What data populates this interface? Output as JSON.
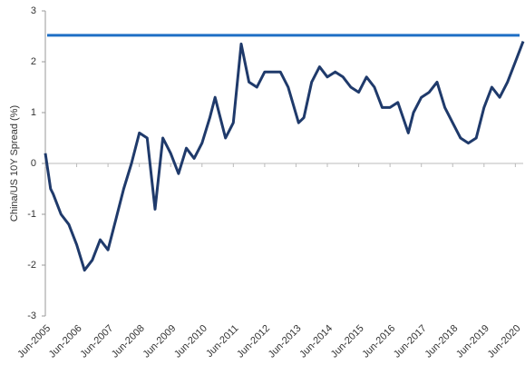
{
  "chart_data": {
    "type": "line",
    "y_label": "China/US 10Y Spread (%)",
    "x": [
      "Jun-2005",
      "Aug-2005",
      "Sep-2005",
      "Dec-2005",
      "Mar-2006",
      "Jun-2006",
      "Sep-2006",
      "Dec-2006",
      "Mar-2007",
      "Jun-2007",
      "Sep-2007",
      "Dec-2007",
      "Mar-2008",
      "Jun-2008",
      "Sep-2008",
      "Dec-2008",
      "Mar-2009",
      "Jun-2009",
      "Sep-2009",
      "Dec-2009",
      "Mar-2010",
      "Jun-2010",
      "Sep-2010",
      "Nov-2010",
      "Mar-2011",
      "Jun-2011",
      "Sep-2011",
      "Dec-2011",
      "Mar-2012",
      "Jun-2012",
      "Sep-2012",
      "Dec-2012",
      "Mar-2013",
      "Jul-2013",
      "Sep-2013",
      "Dec-2013",
      "Mar-2014",
      "Jun-2014",
      "Sep-2014",
      "Dec-2014",
      "Mar-2015",
      "Jun-2015",
      "Sep-2015",
      "Dec-2015",
      "Mar-2016",
      "Jun-2016",
      "Sep-2016",
      "Jan-2017",
      "Mar-2017",
      "Jun-2017",
      "Sep-2017",
      "Dec-2017",
      "Mar-2018",
      "Jun-2018",
      "Sep-2018",
      "Dec-2018",
      "Mar-2019",
      "Jun-2019",
      "Sep-2019",
      "Dec-2019",
      "Mar-2020",
      "Jun-2020",
      "Sep-2020"
    ],
    "series": [
      {
        "color": "#1f3a6b",
        "values": [
          0.2,
          -0.5,
          -0.6,
          -1.0,
          -1.2,
          -1.6,
          -2.1,
          -1.9,
          -1.5,
          -1.7,
          -1.1,
          -0.5,
          0.0,
          0.6,
          0.5,
          -0.9,
          0.5,
          0.2,
          -0.2,
          0.3,
          0.1,
          0.4,
          0.9,
          1.3,
          0.5,
          0.8,
          2.35,
          1.6,
          1.5,
          1.8,
          1.8,
          1.8,
          1.5,
          0.8,
          0.9,
          1.6,
          1.9,
          1.7,
          1.8,
          1.7,
          1.5,
          1.4,
          1.7,
          1.5,
          1.1,
          1.1,
          1.2,
          0.6,
          1.0,
          1.3,
          1.4,
          1.6,
          1.1,
          0.8,
          0.5,
          0.4,
          0.5,
          1.1,
          1.5,
          1.3,
          1.6,
          2.0,
          2.4
        ]
      }
    ],
    "reference_line": {
      "value": 2.52,
      "color": "#1f6fc5"
    },
    "xlim": [
      "Jun-2005",
      "Sep-2020"
    ],
    "xticks": [
      "Jun-2005",
      "Jun-2006",
      "Jun-2007",
      "Jun-2008",
      "Jun-2009",
      "Jun-2010",
      "Jun-2011",
      "Jun-2012",
      "Jun-2013",
      "Jun-2014",
      "Jun-2015",
      "Jun-2016",
      "Jun-2017",
      "Jun-2018",
      "Jun-2019",
      "Jun-2020"
    ],
    "ylim": [
      -3,
      3
    ],
    "yticks": [
      -3,
      -2,
      -1,
      0,
      1,
      2,
      3
    ]
  }
}
